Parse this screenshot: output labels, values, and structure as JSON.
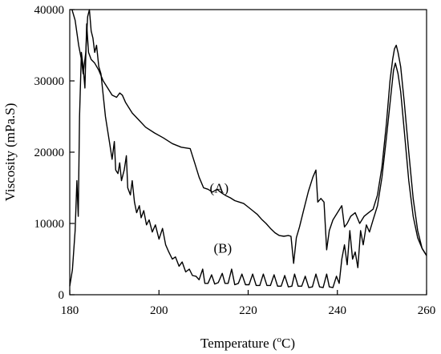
{
  "chart_data": {
    "type": "line",
    "title": "",
    "xlabel": {
      "main": "Temperature (",
      "sup": "o",
      "tail": "C)"
    },
    "ylabel": "Viscosity (mPa.S)",
    "xlim": [
      180,
      260
    ],
    "ylim": [
      0,
      40000
    ],
    "x_ticks": [
      180,
      200,
      220,
      240,
      260
    ],
    "y_ticks": [
      0,
      10000,
      20000,
      30000,
      40000
    ],
    "grid": false,
    "legend": "none",
    "line_color": "#000000",
    "annotations": [
      {
        "text": "(A)",
        "x": 213.5,
        "y": 14300
      },
      {
        "text": "(B)",
        "x": 214.3,
        "y": 5900
      }
    ],
    "series": [
      {
        "label": "(A)",
        "points": [
          [
            180,
            1200
          ],
          [
            180.6,
            3500
          ],
          [
            181.2,
            9000
          ],
          [
            181.6,
            16000
          ],
          [
            181.9,
            11000
          ],
          [
            182.2,
            25000
          ],
          [
            182.6,
            34000
          ],
          [
            183,
            32000
          ],
          [
            183.4,
            29000
          ],
          [
            183.8,
            38000
          ],
          [
            184.2,
            34000
          ],
          [
            184.8,
            33000
          ],
          [
            185.6,
            32500
          ],
          [
            186.5,
            31500
          ],
          [
            187.5,
            30000
          ],
          [
            188.5,
            29000
          ],
          [
            189.5,
            28000
          ],
          [
            190.5,
            27700
          ],
          [
            191.2,
            28300
          ],
          [
            191.8,
            28000
          ],
          [
            192.5,
            27000
          ],
          [
            194,
            25500
          ],
          [
            195.5,
            24500
          ],
          [
            197,
            23500
          ],
          [
            199,
            22700
          ],
          [
            201,
            22000
          ],
          [
            203,
            21200
          ],
          [
            205,
            20700
          ],
          [
            207,
            20500
          ],
          [
            208,
            18500
          ],
          [
            209,
            16500
          ],
          [
            210,
            15000
          ],
          [
            211,
            14800
          ],
          [
            212,
            14400
          ],
          [
            213,
            14800
          ],
          [
            214,
            14300
          ],
          [
            215,
            13900
          ],
          [
            216,
            13600
          ],
          [
            217,
            13200
          ],
          [
            218,
            13000
          ],
          [
            219,
            12800
          ],
          [
            220,
            12300
          ],
          [
            221,
            11800
          ],
          [
            222,
            11300
          ],
          [
            223,
            10600
          ],
          [
            224,
            10000
          ],
          [
            225,
            9300
          ],
          [
            226,
            8700
          ],
          [
            227,
            8300
          ],
          [
            228,
            8200
          ],
          [
            229,
            8300
          ],
          [
            229.6,
            8200
          ],
          [
            230.2,
            4400
          ],
          [
            230.8,
            8000
          ],
          [
            231.5,
            9500
          ],
          [
            232.5,
            12000
          ],
          [
            233.5,
            14500
          ],
          [
            234.5,
            16500
          ],
          [
            235.2,
            17500
          ],
          [
            235.6,
            13000
          ],
          [
            236.3,
            13500
          ],
          [
            237,
            13000
          ],
          [
            237.6,
            6300
          ],
          [
            238.2,
            9000
          ],
          [
            239,
            10500
          ],
          [
            240,
            11500
          ],
          [
            241,
            12500
          ],
          [
            241.6,
            9500
          ],
          [
            242.2,
            10000
          ],
          [
            243,
            11000
          ],
          [
            244,
            11500
          ],
          [
            245,
            10000
          ],
          [
            246,
            11000
          ],
          [
            247,
            11500
          ],
          [
            248,
            12000
          ],
          [
            249,
            14000
          ],
          [
            250,
            18000
          ],
          [
            251,
            24000
          ],
          [
            251.8,
            30000
          ],
          [
            252.4,
            33000
          ],
          [
            252.8,
            34500
          ],
          [
            253.2,
            35000
          ],
          [
            253.6,
            34000
          ],
          [
            254.2,
            32000
          ],
          [
            255,
            27000
          ],
          [
            256,
            20000
          ],
          [
            257,
            13500
          ],
          [
            258,
            9000
          ],
          [
            259,
            6500
          ],
          [
            260,
            5500
          ]
        ]
      },
      {
        "label": "(B)",
        "points": [
          [
            180.5,
            40000
          ],
          [
            181.2,
            38500
          ],
          [
            182,
            35000
          ],
          [
            182.6,
            33000
          ],
          [
            183,
            31000
          ],
          [
            183.6,
            34000
          ],
          [
            184,
            39000
          ],
          [
            184.4,
            40000
          ],
          [
            184.8,
            37000
          ],
          [
            185.2,
            36000
          ],
          [
            185.6,
            34000
          ],
          [
            186,
            35000
          ],
          [
            186.5,
            32000
          ],
          [
            187,
            31000
          ],
          [
            187.5,
            28000
          ],
          [
            188,
            25000
          ],
          [
            188.5,
            23000
          ],
          [
            189,
            21000
          ],
          [
            189.5,
            19000
          ],
          [
            190,
            21500
          ],
          [
            190.3,
            17500
          ],
          [
            190.8,
            17000
          ],
          [
            191.2,
            18500
          ],
          [
            191.6,
            16000
          ],
          [
            192.2,
            17500
          ],
          [
            192.7,
            19500
          ],
          [
            193,
            15000
          ],
          [
            193.6,
            14000
          ],
          [
            194,
            16000
          ],
          [
            194.5,
            13000
          ],
          [
            195,
            11500
          ],
          [
            195.6,
            12500
          ],
          [
            196,
            10800
          ],
          [
            196.6,
            11800
          ],
          [
            197.2,
            9800
          ],
          [
            197.8,
            10500
          ],
          [
            198.5,
            8800
          ],
          [
            199.2,
            9800
          ],
          [
            200,
            7800
          ],
          [
            200.8,
            9300
          ],
          [
            201.5,
            7000
          ],
          [
            202.2,
            6000
          ],
          [
            203,
            5000
          ],
          [
            203.7,
            5300
          ],
          [
            204.5,
            4000
          ],
          [
            205.2,
            4600
          ],
          [
            206,
            3200
          ],
          [
            206.8,
            3600
          ],
          [
            207.5,
            2700
          ],
          [
            208.3,
            2600
          ],
          [
            209,
            2100
          ],
          [
            209.8,
            3600
          ],
          [
            210.3,
            1600
          ],
          [
            211,
            1600
          ],
          [
            211.8,
            2800
          ],
          [
            212.5,
            1500
          ],
          [
            213.3,
            1700
          ],
          [
            214.2,
            3000
          ],
          [
            214.8,
            1600
          ],
          [
            215.5,
            1600
          ],
          [
            216.3,
            3600
          ],
          [
            217,
            1400
          ],
          [
            217.8,
            1600
          ],
          [
            218.6,
            2900
          ],
          [
            219.4,
            1400
          ],
          [
            220.2,
            1400
          ],
          [
            221,
            2900
          ],
          [
            221.8,
            1300
          ],
          [
            222.6,
            1300
          ],
          [
            223.4,
            2900
          ],
          [
            224.2,
            1300
          ],
          [
            225,
            1300
          ],
          [
            225.8,
            2800
          ],
          [
            226.6,
            1200
          ],
          [
            227.4,
            1200
          ],
          [
            228.2,
            2700
          ],
          [
            229,
            1100
          ],
          [
            229.8,
            1200
          ],
          [
            230.4,
            2900
          ],
          [
            231.2,
            1200
          ],
          [
            232,
            1200
          ],
          [
            232.8,
            2600
          ],
          [
            233.6,
            1000
          ],
          [
            234.4,
            1100
          ],
          [
            235.2,
            2900
          ],
          [
            236,
            1100
          ],
          [
            236.8,
            1000
          ],
          [
            237.6,
            2900
          ],
          [
            238.2,
            1100
          ],
          [
            239,
            1000
          ],
          [
            239.8,
            2600
          ],
          [
            240.4,
            1600
          ],
          [
            241,
            5000
          ],
          [
            241.6,
            7000
          ],
          [
            242.2,
            4200
          ],
          [
            242.8,
            9000
          ],
          [
            243.4,
            5000
          ],
          [
            244,
            6000
          ],
          [
            244.6,
            3800
          ],
          [
            245.2,
            9000
          ],
          [
            245.8,
            7000
          ],
          [
            246.5,
            9800
          ],
          [
            247.2,
            8800
          ],
          [
            248,
            10500
          ],
          [
            249,
            12500
          ],
          [
            250,
            16500
          ],
          [
            251,
            22000
          ],
          [
            252,
            28000
          ],
          [
            252.6,
            31500
          ],
          [
            253,
            32500
          ],
          [
            253.6,
            31000
          ],
          [
            254.2,
            28500
          ],
          [
            255,
            23000
          ],
          [
            256,
            16000
          ],
          [
            257,
            11000
          ],
          [
            258,
            8000
          ],
          [
            259,
            6500
          ],
          [
            260,
            5500
          ]
        ]
      }
    ]
  }
}
